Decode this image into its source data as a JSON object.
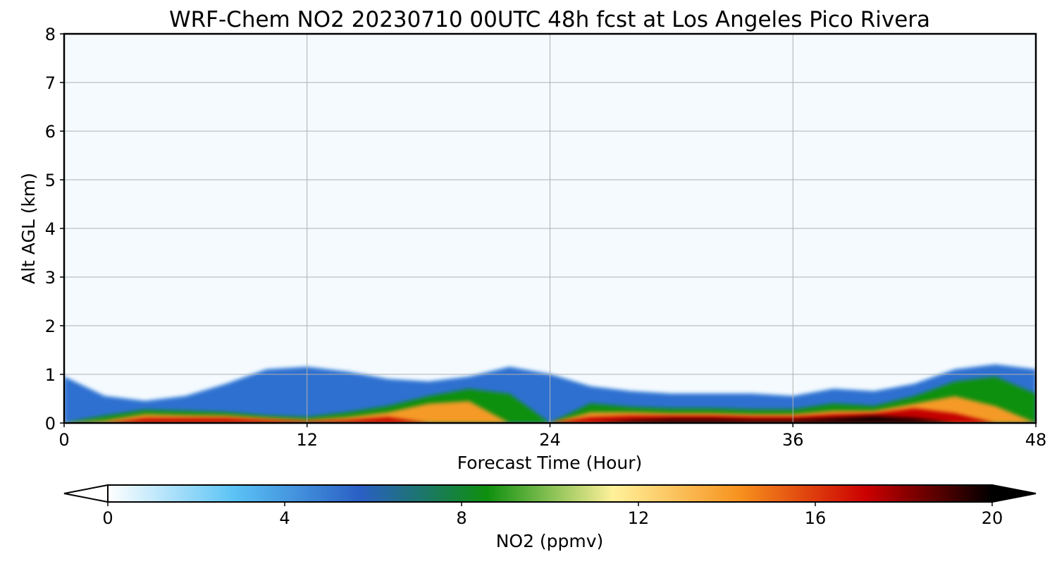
{
  "chart_data": {
    "type": "heatmap",
    "title": "WRF-Chem NO2  20230710 00UTC 48h fcst at Los Angeles Pico Rivera",
    "xlabel": "Forecast Time (Hour)",
    "ylabel": "Alt AGL (km)",
    "xlim": [
      0,
      48
    ],
    "ylim": [
      0,
      8
    ],
    "xticks": [
      "0",
      "12",
      "24",
      "36",
      "48"
    ],
    "yticks": [
      "0",
      "1",
      "2",
      "3",
      "4",
      "5",
      "6",
      "7",
      "8"
    ],
    "grid": true,
    "colorbar": {
      "label": "NO2  (ppmv)",
      "range": [
        0,
        20
      ],
      "ticks": [
        "0",
        "4",
        "8",
        "12",
        "16",
        "20"
      ],
      "extend": "both",
      "colors": [
        "#ffffff",
        "#5bc3f5",
        "#2a5fc4",
        "#0e8f0e",
        "#fff19a",
        "#f7921e",
        "#cc0000",
        "#000000"
      ]
    },
    "x": [
      0,
      2,
      4,
      6,
      8,
      10,
      12,
      14,
      16,
      18,
      20,
      22,
      24,
      26,
      28,
      30,
      32,
      34,
      36,
      38,
      40,
      42,
      44,
      46,
      48
    ],
    "series": [
      {
        "name": "blue_top_km",
        "values": [
          0.95,
          0.55,
          0.45,
          0.55,
          0.8,
          1.1,
          1.15,
          1.05,
          0.9,
          0.85,
          0.95,
          1.15,
          1.0,
          0.75,
          0.65,
          0.6,
          0.6,
          0.6,
          0.55,
          0.7,
          0.65,
          0.8,
          1.1,
          1.2,
          1.1
        ]
      },
      {
        "name": "green_top_km",
        "values": [
          0.0,
          0.15,
          0.27,
          0.25,
          0.22,
          0.15,
          0.12,
          0.22,
          0.35,
          0.55,
          0.7,
          0.6,
          0.0,
          0.4,
          0.33,
          0.3,
          0.3,
          0.28,
          0.28,
          0.4,
          0.35,
          0.55,
          0.85,
          0.95,
          0.6
        ]
      },
      {
        "name": "orange_top_km",
        "values": [
          0.0,
          0.05,
          0.18,
          0.16,
          0.15,
          0.1,
          0.06,
          0.12,
          0.22,
          0.4,
          0.45,
          0.0,
          0.0,
          0.22,
          0.22,
          0.2,
          0.2,
          0.18,
          0.18,
          0.25,
          0.25,
          0.4,
          0.55,
          0.35,
          0.0
        ]
      },
      {
        "name": "red_top_km",
        "values": [
          0.0,
          0.0,
          0.1,
          0.1,
          0.1,
          0.06,
          0.03,
          0.06,
          0.12,
          0.0,
          0.0,
          0.0,
          0.0,
          0.12,
          0.15,
          0.15,
          0.15,
          0.13,
          0.13,
          0.18,
          0.2,
          0.3,
          0.2,
          0.0,
          0.0
        ]
      },
      {
        "name": "black_top_km",
        "values": [
          0.0,
          0.0,
          0.0,
          0.0,
          0.0,
          0.0,
          0.0,
          0.0,
          0.0,
          0.0,
          0.0,
          0.0,
          0.0,
          0.0,
          0.05,
          0.08,
          0.08,
          0.06,
          0.06,
          0.1,
          0.14,
          0.1,
          0.0,
          0.0,
          0.0
        ]
      }
    ]
  }
}
